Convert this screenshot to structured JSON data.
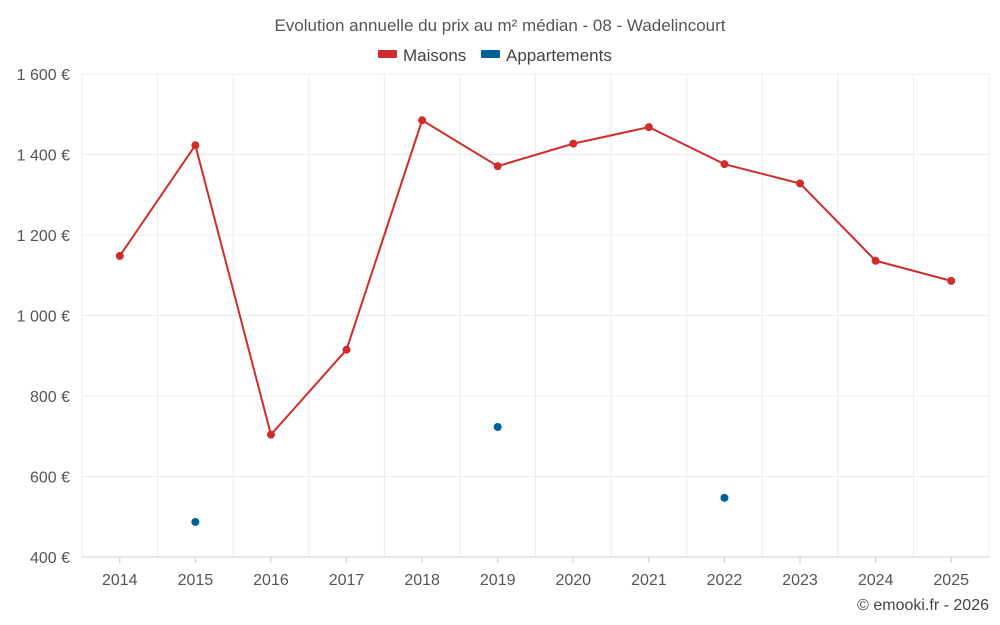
{
  "chart_data": {
    "type": "line",
    "title": "Evolution annuelle du prix au m² médian - 08 - Wadelincourt",
    "categories": [
      "2014",
      "2015",
      "2016",
      "2017",
      "2018",
      "2019",
      "2020",
      "2021",
      "2022",
      "2023",
      "2024",
      "2025"
    ],
    "ylim": [
      400,
      1600
    ],
    "yticks": [
      400,
      600,
      800,
      1000,
      1200,
      1400,
      1600
    ],
    "y_tick_labels": [
      "400 €",
      "600 €",
      "800 €",
      "1 000 €",
      "1 200 €",
      "1 400 €",
      "1 600 €"
    ],
    "grid": true,
    "legend_position": "top-center",
    "series": [
      {
        "name": "Maisons",
        "color": "#d22b2b",
        "values": [
          1148,
          1423,
          704,
          915,
          1485,
          1371,
          1427,
          1468,
          1376,
          1328,
          1136,
          1086
        ]
      },
      {
        "name": "Appartements",
        "color": "#006199",
        "values": [
          null,
          487,
          null,
          null,
          null,
          723,
          null,
          null,
          547,
          null,
          null,
          null
        ]
      }
    ],
    "credit": "© emooki.fr - 2026"
  }
}
